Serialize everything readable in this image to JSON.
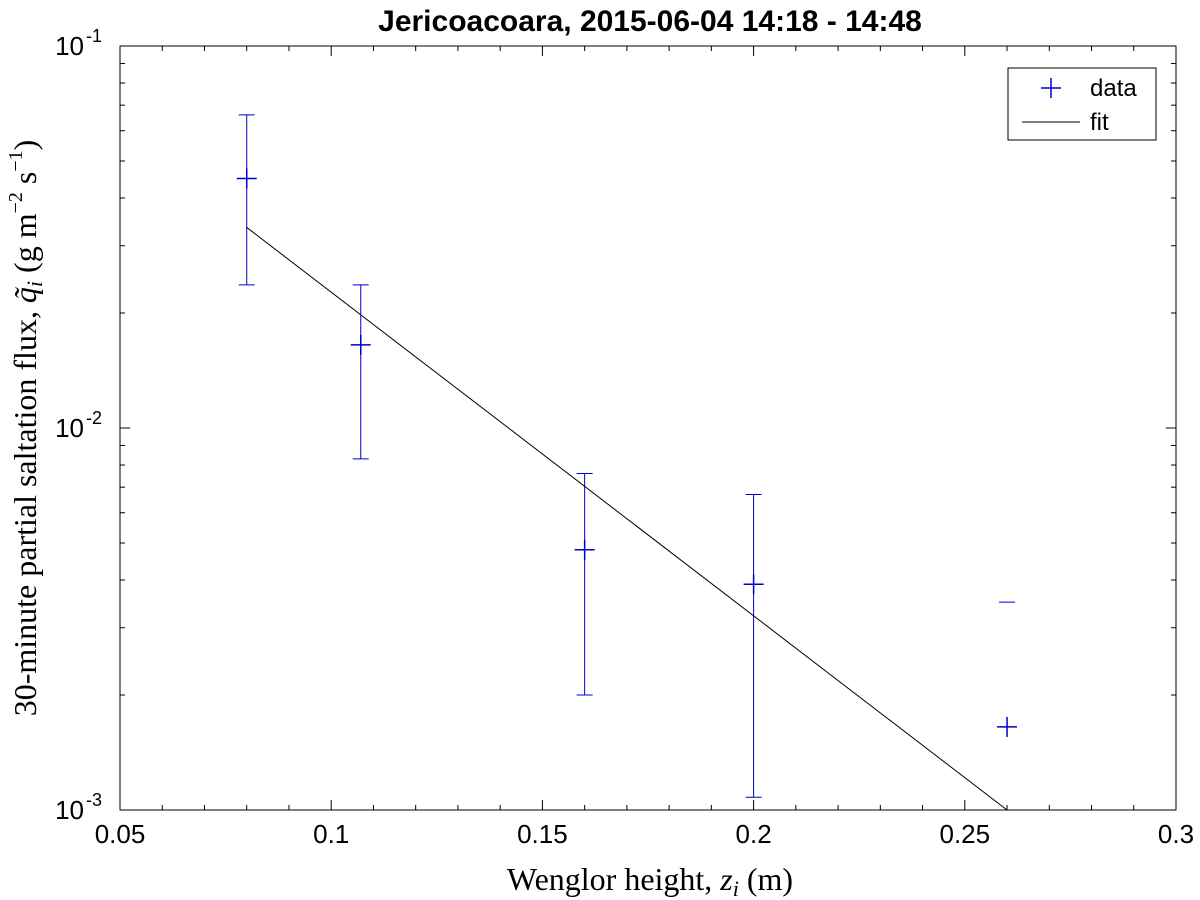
{
  "chart_data": {
    "type": "scatter",
    "title": "Jericoacoara, 2015-06-04 14:18 - 14:48",
    "xlabel": "Wenglor height, z_i (m)",
    "ylabel": "30-minute partial saltation flux, q̃_i (g m^-2 s^-1)",
    "xlim": [
      0.05,
      0.3
    ],
    "ylim": [
      0.001,
      0.1
    ],
    "yscale": "log",
    "x_ticks": [
      "0.05",
      "0.1",
      "0.15",
      "0.2",
      "0.25",
      "0.3"
    ],
    "y_ticks": [
      {
        "base": "10",
        "exp": "-3"
      },
      {
        "base": "10",
        "exp": "-2"
      },
      {
        "base": "10",
        "exp": "-1"
      }
    ],
    "grid": false,
    "legend": {
      "position": "top-right",
      "entries": [
        "data",
        "fit"
      ]
    },
    "series": [
      {
        "name": "data",
        "marker": "+",
        "color": "#0000cc",
        "x": [
          0.08,
          0.107,
          0.16,
          0.2,
          0.26
        ],
        "y": [
          0.045,
          0.0165,
          0.0048,
          0.0039,
          0.00165
        ],
        "err_low": [
          0.0237,
          0.0083,
          0.002,
          0.00108,
          null
        ],
        "err_high": [
          0.066,
          0.0237,
          0.0076,
          0.0067,
          0.0035
        ]
      },
      {
        "name": "fit",
        "type": "line",
        "color": "#000000",
        "x": [
          0.08,
          0.26
        ],
        "y": [
          0.0335,
          0.001
        ]
      }
    ]
  }
}
